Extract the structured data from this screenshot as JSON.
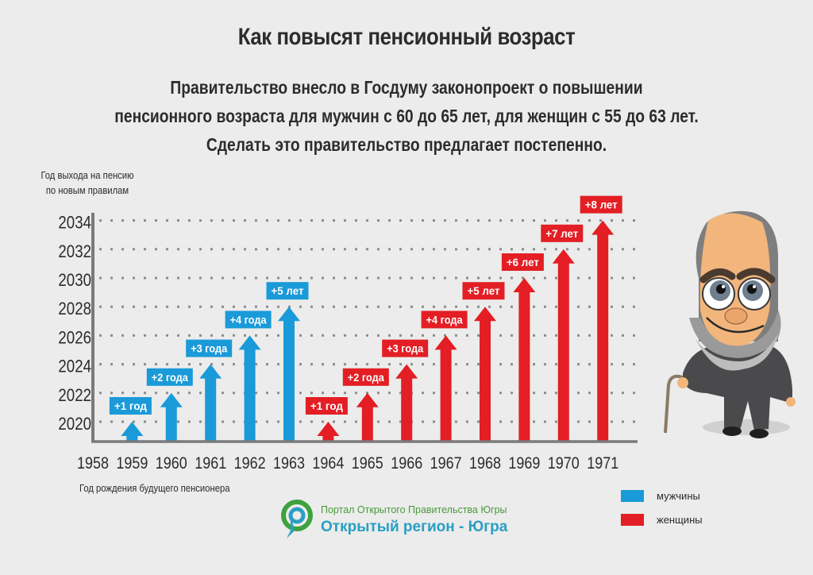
{
  "header": {
    "title": "Как повысят пенсионный возраст",
    "subtitle_lines": [
      "Правительство внесло в Госдуму законопроект о повышении",
      "пенсионного возраста для мужчин с 60 до 65 лет, для женщин с 55 до 63 лет.",
      "Сделать это правительство предлагает постепенно."
    ]
  },
  "axes": {
    "y_label_lines": [
      "Год выхода на пенсию",
      "по новым правилам"
    ],
    "x_label": "Год рождения будущего пенсионера"
  },
  "legend": {
    "items": [
      {
        "label": "мужчины",
        "color": "#1a9ad9"
      },
      {
        "label": "женщины",
        "color": "#e31e24"
      }
    ]
  },
  "logo": {
    "small_text": "Портал Открытого Правительства Югры",
    "big_text": "Открытый регион - Югра"
  },
  "colors": {
    "men": "#1a9ad9",
    "women": "#e31e24",
    "axis": "#7a7a7a",
    "grid": "#8c8c8c",
    "background": "#ebeceb"
  },
  "chart_data": {
    "type": "bar",
    "title": "Как повысят пенсионный возраст",
    "xlabel": "Год рождения будущего пенсионера",
    "ylabel": "Год выхода на пенсию по новым правилам",
    "categories": [
      "1958",
      "1959",
      "1960",
      "1961",
      "1962",
      "1963",
      "1964",
      "1965",
      "1966",
      "1967",
      "1968",
      "1969",
      "1970",
      "1971"
    ],
    "y_ticks": [
      2020,
      2022,
      2024,
      2026,
      2028,
      2030,
      2032,
      2034
    ],
    "ylim": [
      2018.6,
      2035
    ],
    "grid": "dotted horizontal",
    "legend_position": "bottom-right",
    "series": [
      {
        "name": "мужчины",
        "color": "#1a9ad9",
        "points": [
          {
            "birth_year": "1959",
            "retire_year": 2020,
            "label": "+1 год"
          },
          {
            "birth_year": "1960",
            "retire_year": 2022,
            "label": "+2 года"
          },
          {
            "birth_year": "1961",
            "retire_year": 2024,
            "label": "+3 года"
          },
          {
            "birth_year": "1962",
            "retire_year": 2026,
            "label": "+4 года"
          },
          {
            "birth_year": "1963",
            "retire_year": 2028,
            "label": "+5 лет"
          }
        ]
      },
      {
        "name": "женщины",
        "color": "#e31e24",
        "points": [
          {
            "birth_year": "1964",
            "retire_year": 2020,
            "label": "+1 год"
          },
          {
            "birth_year": "1965",
            "retire_year": 2022,
            "label": "+2 года"
          },
          {
            "birth_year": "1966",
            "retire_year": 2024,
            "label": "+3 года"
          },
          {
            "birth_year": "1967",
            "retire_year": 2026,
            "label": "+4 года"
          },
          {
            "birth_year": "1968",
            "retire_year": 2028,
            "label": "+5 лет"
          },
          {
            "birth_year": "1969",
            "retire_year": 2030,
            "label": "+6 лет"
          },
          {
            "birth_year": "1970",
            "retire_year": 2032,
            "label": "+7 лет"
          },
          {
            "birth_year": "1971",
            "retire_year": 2034,
            "label": "+8 лет"
          }
        ]
      }
    ]
  }
}
